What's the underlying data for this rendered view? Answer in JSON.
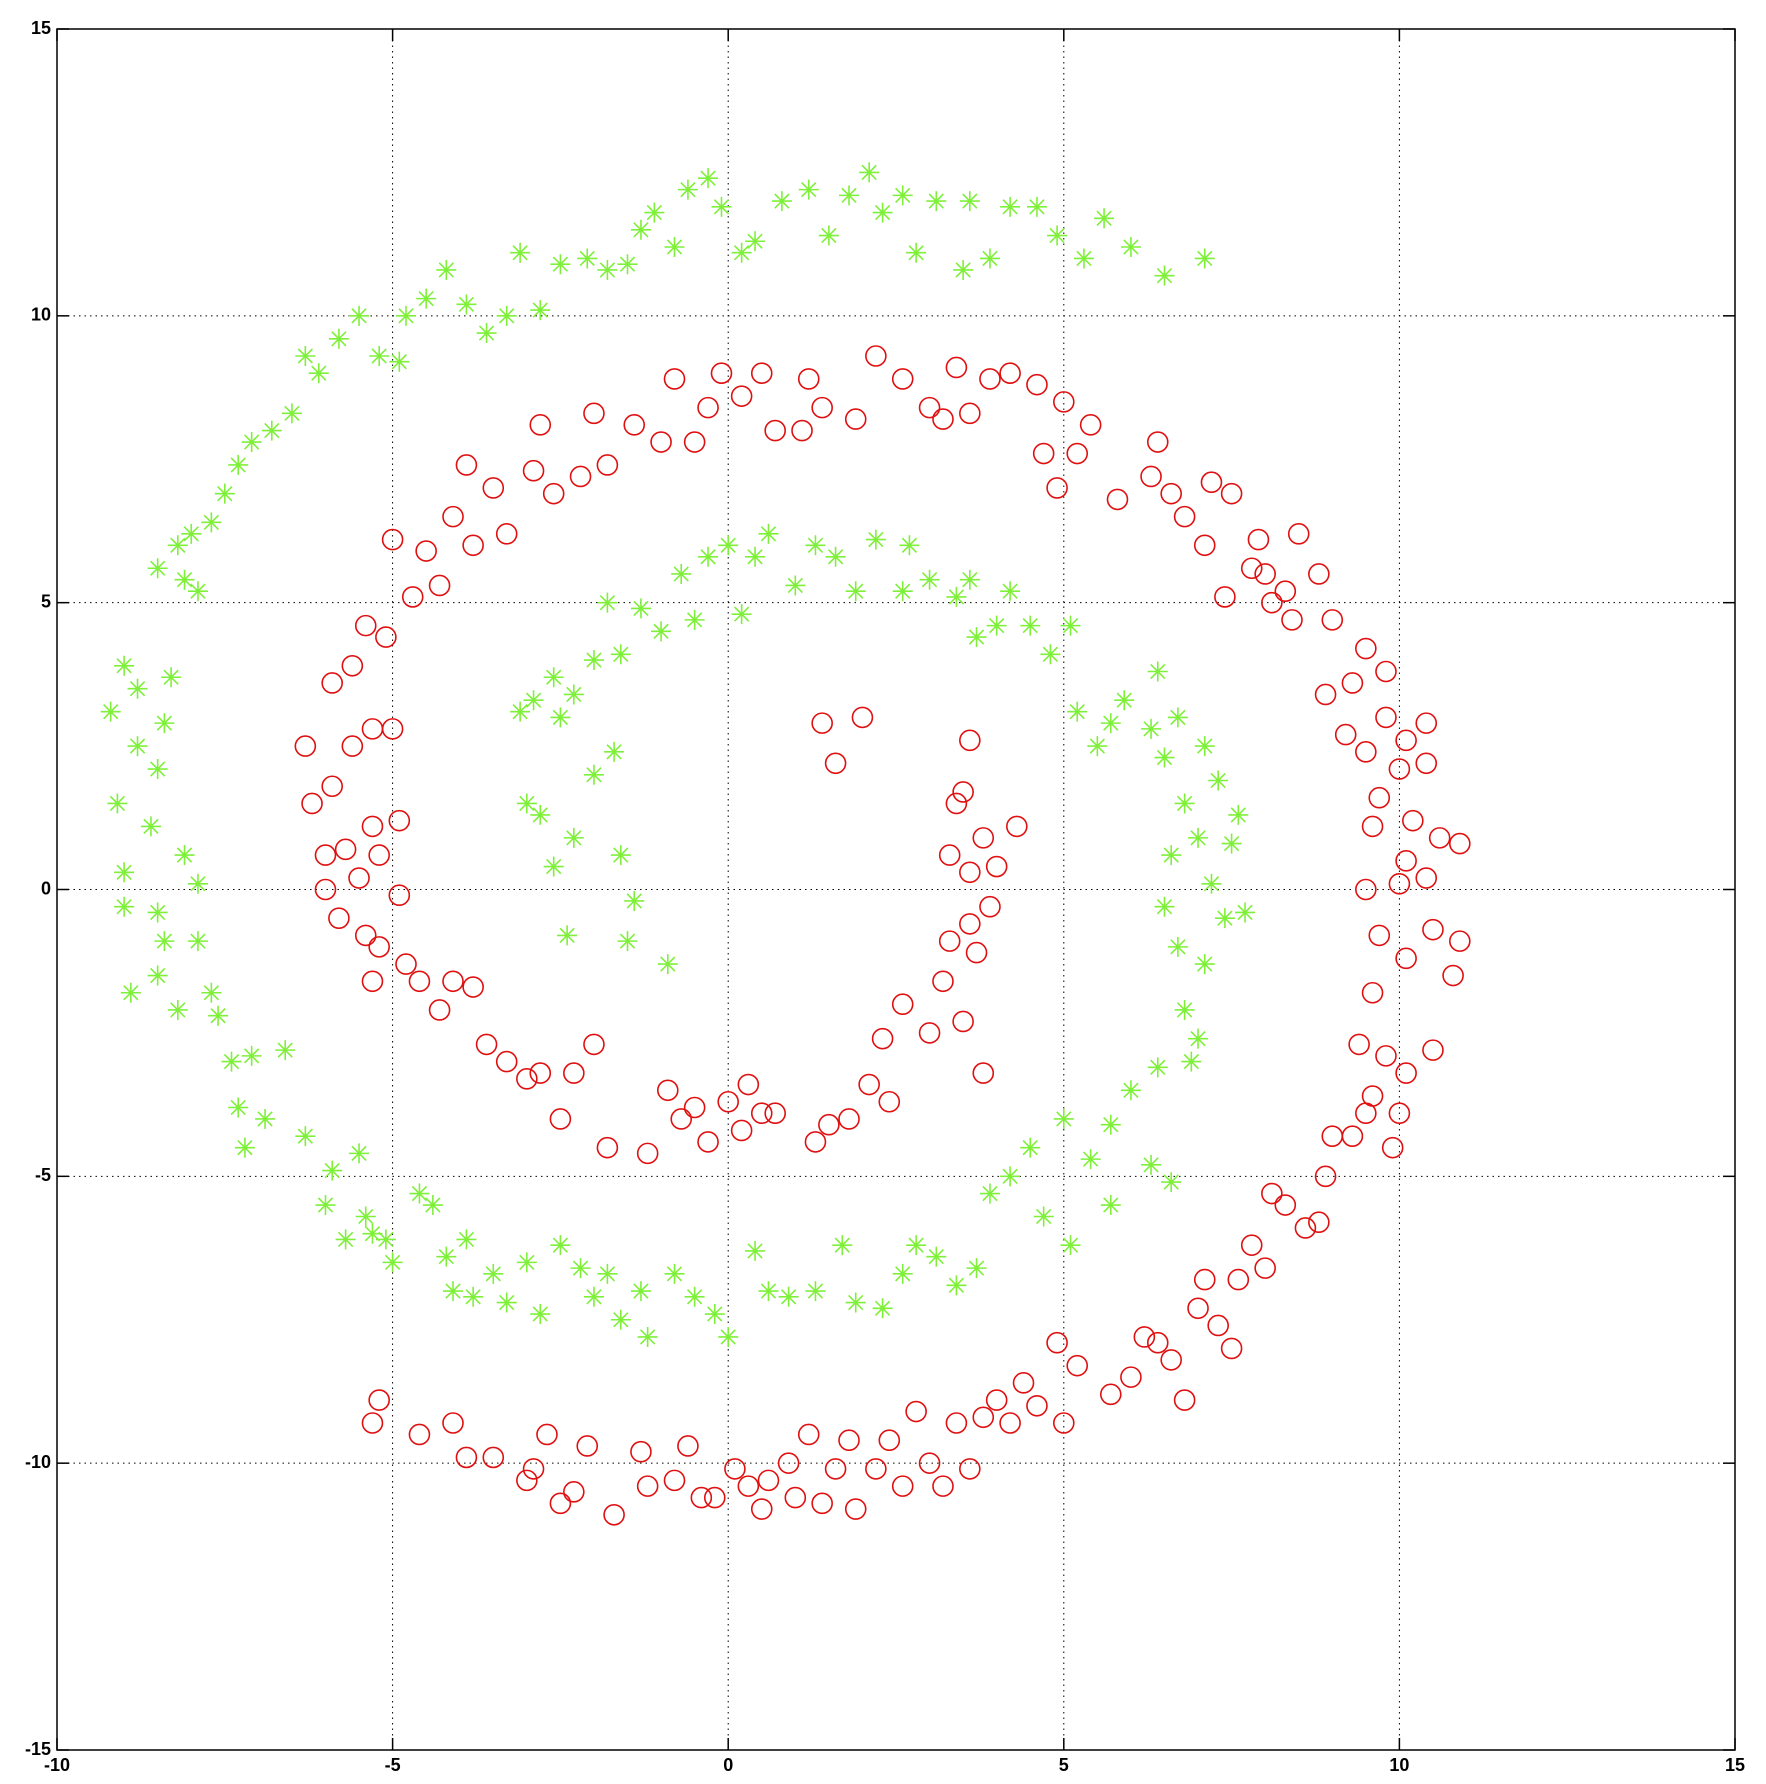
{
  "chart_data": {
    "type": "scatter",
    "xlim": [
      -10,
      15
    ],
    "ylim": [
      -15,
      15
    ],
    "xticks": [
      -10,
      -5,
      0,
      5,
      10,
      15
    ],
    "yticks": [
      -15,
      -10,
      -5,
      0,
      5,
      10,
      15
    ],
    "grid": true,
    "series": [
      {
        "color": "#7ff03a",
        "marker": "asterisk",
        "x": [
          7.1,
          6.5,
          6.0,
          5.6,
          5.3,
          4.9,
          4.6,
          4.2,
          3.9,
          3.6,
          3.5,
          3.1,
          2.8,
          2.6,
          2.3,
          2.1,
          1.8,
          1.5,
          1.2,
          0.8,
          0.4,
          0.2,
          -0.1,
          -0.3,
          -0.6,
          -0.8,
          -1.1,
          -1.3,
          -1.5,
          -1.8,
          -2.1,
          -2.5,
          -2.8,
          -3.1,
          -3.3,
          -3.6,
          -3.9,
          -4.2,
          -4.5,
          -4.8,
          -4.9,
          -5.2,
          -5.5,
          -5.8,
          -6.1,
          -6.3,
          -6.5,
          -6.8,
          -7.1,
          -7.3,
          -7.5,
          -7.7,
          -8.0,
          -8.2,
          -8.5,
          -8.1,
          -7.9,
          -9.0,
          -8.3,
          -8.8,
          -9.2,
          -8.4,
          -8.8,
          -8.5,
          -9.1,
          -8.6,
          -8.1,
          -9.0,
          -7.9,
          -8.5,
          -9.0,
          -8.4,
          -7.9,
          -8.5,
          -8.9,
          -8.2,
          -7.7,
          -7.6,
          -7.4,
          -7.1,
          -6.6,
          -7.3,
          -6.9,
          -7.2,
          -6.3,
          -5.9,
          -6.0,
          -5.5,
          -5.4,
          -5.7,
          -5.3,
          -5.1,
          -5.0,
          -4.6,
          -4.4,
          -4.2,
          -4.1,
          -3.9,
          -3.8,
          -3.5,
          -3.3,
          -3.0,
          -2.8,
          -2.5,
          -2.2,
          -2.0,
          -1.8,
          -1.6,
          -1.3,
          -1.2,
          -0.8,
          -0.5,
          -0.2,
          0.0,
          0.4,
          0.6,
          0.9,
          1.3,
          1.7,
          1.9,
          2.3,
          2.6,
          2.8,
          3.1,
          3.4,
          3.7,
          3.9,
          4.2,
          4.5,
          4.7,
          5.0,
          5.1,
          5.4,
          5.7,
          5.7,
          6.0,
          6.3,
          6.4,
          6.6,
          6.8,
          6.9,
          7.0,
          7.1,
          6.7,
          6.5,
          7.4,
          7.2,
          7.7,
          6.6,
          7.0,
          7.5,
          7.6,
          6.8,
          7.3,
          6.5,
          7.1,
          6.3,
          6.7,
          5.9,
          6.4,
          5.7,
          5.5,
          5.2,
          4.8,
          5.1,
          4.5,
          4.0,
          4.2,
          3.7,
          3.6,
          3.4,
          3.0,
          2.6,
          2.7,
          2.2,
          1.9,
          1.6,
          1.3,
          1.0,
          0.6,
          0.4,
          0.2,
          0.0,
          -0.3,
          -0.5,
          -0.7,
          -1.0,
          -1.3,
          -1.6,
          -1.8,
          -2.0,
          -2.3,
          -2.5,
          -2.6,
          -2.9,
          -3.1,
          -3.0,
          -2.8,
          -2.6,
          -2.3,
          -2.4,
          -2.0,
          -1.7,
          -1.6,
          -1.5,
          -1.4,
          -0.9
        ],
        "values": [
          11.0,
          10.7,
          11.2,
          11.7,
          11.0,
          11.4,
          11.9,
          11.9,
          11.0,
          12.0,
          10.8,
          12.0,
          11.1,
          12.1,
          11.8,
          12.5,
          12.1,
          11.4,
          12.2,
          12.0,
          11.3,
          11.1,
          11.9,
          12.4,
          12.2,
          11.2,
          11.8,
          11.5,
          10.9,
          10.8,
          11.0,
          10.9,
          10.1,
          11.1,
          10.0,
          9.7,
          10.2,
          10.8,
          10.3,
          10.0,
          9.2,
          9.3,
          10.0,
          9.6,
          9.0,
          9.3,
          8.3,
          8.0,
          7.8,
          7.4,
          6.9,
          6.4,
          6.2,
          6.0,
          5.6,
          5.4,
          5.2,
          3.9,
          3.7,
          3.5,
          3.1,
          2.9,
          2.5,
          2.1,
          1.5,
          1.1,
          0.6,
          0.3,
          0.1,
          -0.4,
          -0.3,
          -0.9,
          -0.9,
          -1.5,
          -1.8,
          -2.1,
          -1.8,
          -2.2,
          -3.0,
          -2.9,
          -2.8,
          -3.8,
          -4.0,
          -4.5,
          -4.3,
          -4.9,
          -5.5,
          -4.6,
          -5.7,
          -6.1,
          -6.0,
          -6.1,
          -6.5,
          -5.3,
          -5.5,
          -6.4,
          -7.0,
          -6.1,
          -7.1,
          -6.7,
          -7.2,
          -6.5,
          -7.4,
          -6.2,
          -6.6,
          -7.1,
          -6.7,
          -7.5,
          -7.0,
          -7.8,
          -6.7,
          -7.1,
          -7.4,
          -7.8,
          -6.3,
          -7.0,
          -7.1,
          -7.0,
          -6.2,
          -7.2,
          -7.3,
          -6.7,
          -6.2,
          -6.4,
          -6.9,
          -6.6,
          -5.3,
          -5.0,
          -4.5,
          -5.7,
          -4.0,
          -6.2,
          -4.7,
          -4.1,
          -5.5,
          -3.5,
          -4.8,
          -3.1,
          -5.1,
          -2.1,
          -3.0,
          -2.6,
          -1.3,
          -1.0,
          -0.3,
          -0.5,
          0.1,
          -0.4,
          0.6,
          0.9,
          0.8,
          1.3,
          1.5,
          1.9,
          2.3,
          2.5,
          2.8,
          3.0,
          3.3,
          3.8,
          2.9,
          2.5,
          3.1,
          4.1,
          4.6,
          4.6,
          4.6,
          5.2,
          4.4,
          5.4,
          5.1,
          5.4,
          5.2,
          6.0,
          6.1,
          5.2,
          5.8,
          6.0,
          5.3,
          6.2,
          5.8,
          4.8,
          6.0,
          5.8,
          4.7,
          5.5,
          4.5,
          4.9,
          4.1,
          5.0,
          4.0,
          3.4,
          3.0,
          3.7,
          3.3,
          3.1,
          1.5,
          1.3,
          0.4,
          0.9,
          -0.8,
          2.0,
          2.4,
          0.6,
          -0.9,
          -0.2,
          -1.3
        ]
      },
      {
        "color": "#e01010",
        "marker": "circle",
        "x": [
          -5.3,
          -5.2,
          -4.6,
          -4.1,
          -3.9,
          -3.5,
          -3.0,
          -2.9,
          -2.7,
          -2.5,
          -2.3,
          -2.1,
          -1.7,
          -1.3,
          -1.2,
          -0.8,
          -0.6,
          -0.4,
          -0.2,
          0.1,
          0.3,
          0.5,
          0.6,
          0.9,
          1.0,
          1.2,
          1.4,
          1.6,
          1.8,
          1.9,
          2.2,
          2.4,
          2.6,
          2.8,
          3.0,
          3.2,
          3.4,
          3.6,
          3.8,
          4.0,
          4.2,
          4.4,
          4.6,
          4.9,
          5.0,
          5.2,
          5.7,
          6.0,
          6.2,
          6.4,
          6.6,
          6.8,
          7.0,
          7.1,
          7.3,
          7.5,
          7.6,
          7.8,
          8.0,
          8.1,
          8.3,
          8.6,
          8.8,
          8.9,
          9.0,
          9.3,
          9.5,
          9.6,
          9.9,
          10.0,
          9.4,
          9.8,
          10.1,
          10.5,
          9.6,
          10.1,
          10.8,
          9.7,
          10.5,
          10.9,
          9.5,
          10.0,
          10.4,
          9.6,
          10.1,
          10.6,
          10.9,
          9.7,
          10.2,
          10.0,
          10.4,
          9.5,
          9.2,
          10.1,
          9.8,
          10.4,
          9.3,
          9.8,
          9.5,
          8.9,
          9.0,
          8.8,
          8.4,
          8.3,
          8.1,
          8.0,
          8.5,
          7.8,
          7.9,
          7.4,
          7.5,
          7.1,
          7.2,
          6.8,
          6.6,
          6.3,
          6.4,
          5.8,
          5.2,
          5.0,
          5.4,
          4.7,
          4.9,
          4.6,
          4.2,
          3.9,
          3.6,
          3.4,
          3.2,
          3.0,
          2.6,
          2.2,
          1.9,
          1.4,
          1.1,
          1.2,
          0.7,
          0.5,
          0.2,
          -0.1,
          -0.3,
          -0.5,
          -0.8,
          -1.0,
          -1.4,
          -1.8,
          -2.0,
          -2.2,
          -2.6,
          -2.8,
          -2.9,
          -3.3,
          -3.5,
          -3.8,
          -3.9,
          -4.1,
          -4.5,
          -4.7,
          -5.0,
          -4.3,
          -5.1,
          -5.4,
          -5.6,
          -5.9,
          -5.3,
          -5.0,
          -5.6,
          -6.3,
          -5.9,
          -6.2,
          -5.3,
          -4.9,
          -5.7,
          -6.0,
          -5.2,
          -5.5,
          -6.0,
          -4.9,
          -5.8,
          -5.4,
          -5.2,
          -4.8,
          -5.3,
          -4.6,
          -4.3,
          -4.1,
          -3.8,
          -3.6,
          -3.3,
          -3.0,
          -2.8,
          -2.5,
          -2.3,
          -2.0,
          -1.8,
          -1.2,
          -0.9,
          -0.7,
          -0.5,
          -0.3,
          0.0,
          0.2,
          0.3,
          0.5,
          0.7,
          1.3,
          1.5,
          1.8,
          2.1,
          2.3,
          2.4,
          2.6,
          3.0,
          3.2,
          3.3,
          3.5,
          3.6,
          3.7,
          3.8,
          3.9,
          3.6,
          4.0,
          3.8,
          4.3,
          3.3,
          3.4,
          3.5,
          3.6,
          2.0,
          1.6,
          1.4
        ],
        "values": [
          -9.3,
          -8.9,
          -9.5,
          -9.3,
          -9.9,
          -9.9,
          -10.3,
          -10.1,
          -9.5,
          -10.7,
          -10.5,
          -9.7,
          -10.9,
          -9.8,
          -10.4,
          -10.3,
          -9.7,
          -10.6,
          -10.6,
          -10.1,
          -10.4,
          -10.8,
          -10.3,
          -10.0,
          -10.6,
          -9.5,
          -10.7,
          -10.1,
          -9.6,
          -10.8,
          -10.1,
          -9.6,
          -10.4,
          -9.1,
          -10.0,
          -10.4,
          -9.3,
          -10.1,
          -9.2,
          -8.9,
          -9.3,
          -8.6,
          -9.0,
          -7.9,
          -9.3,
          -8.3,
          -8.8,
          -8.5,
          -7.8,
          -7.9,
          -8.2,
          -8.9,
          -7.3,
          -6.8,
          -7.6,
          -8.0,
          -6.8,
          -6.2,
          -6.6,
          -5.3,
          -5.5,
          -5.9,
          -5.8,
          -5.0,
          -4.3,
          -4.3,
          -3.9,
          -3.6,
          -4.5,
          -3.9,
          -2.7,
          -2.9,
          -3.2,
          -2.8,
          -1.8,
          -1.2,
          -1.5,
          -0.8,
          -0.7,
          -0.9,
          0.0,
          0.1,
          0.2,
          1.1,
          0.5,
          0.9,
          0.8,
          1.6,
          1.2,
          2.1,
          2.2,
          2.4,
          2.7,
          2.6,
          3.0,
          2.9,
          3.6,
          3.8,
          4.2,
          3.4,
          4.7,
          5.5,
          4.7,
          5.2,
          5.0,
          5.5,
          6.2,
          5.6,
          6.1,
          5.1,
          6.9,
          6.0,
          7.1,
          6.5,
          6.9,
          7.2,
          7.8,
          6.8,
          7.6,
          8.5,
          8.1,
          7.6,
          7.0,
          8.8,
          9.0,
          8.9,
          8.3,
          9.1,
          8.2,
          8.4,
          8.9,
          9.3,
          8.2,
          8.4,
          8.0,
          8.9,
          8.0,
          9.0,
          8.6,
          9.0,
          8.4,
          7.8,
          8.9,
          7.8,
          8.1,
          7.4,
          8.3,
          7.2,
          6.9,
          8.1,
          7.3,
          6.2,
          7.0,
          6.0,
          7.4,
          6.5,
          5.9,
          5.1,
          6.1,
          5.3,
          4.4,
          4.6,
          3.9,
          3.6,
          2.8,
          2.8,
          2.5,
          2.5,
          1.8,
          1.5,
          1.1,
          1.2,
          0.7,
          0.6,
          0.6,
          0.2,
          0.0,
          -0.1,
          -0.5,
          -0.8,
          -1.0,
          -1.3,
          -1.6,
          -1.6,
          -2.1,
          -1.6,
          -1.7,
          -2.7,
          -3.0,
          -3.3,
          -3.2,
          -4.0,
          -3.2,
          -2.7,
          -4.5,
          -4.6,
          -3.5,
          -4.0,
          -3.8,
          -4.4,
          -3.7,
          -4.2,
          -3.4,
          -3.9,
          -3.9,
          -4.4,
          -4.1,
          -4.0,
          -3.4,
          -2.6,
          -3.7,
          -2.0,
          -2.5,
          -1.6,
          -0.9,
          -2.3,
          -0.6,
          -1.1,
          -3.2,
          -0.3,
          0.3,
          0.4,
          0.9,
          1.1,
          0.6,
          1.5,
          1.7,
          2.6,
          3.0,
          2.2,
          2.9
        ]
      }
    ]
  }
}
